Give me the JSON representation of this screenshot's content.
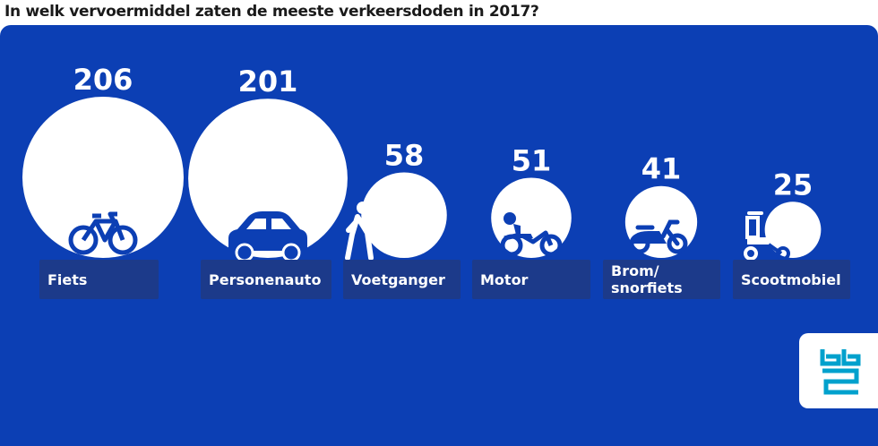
{
  "title": "In welk vervoermiddel zaten de meeste verkeersdoden in 2017?",
  "colors": {
    "background": "#0c3fb4",
    "bubble": "#ffffff",
    "label_bg": "#1c3a8a",
    "icon": "#0c3fb4",
    "logo": "#00a1cd"
  },
  "chart_data": {
    "type": "bubble",
    "title": "In welk vervoermiddel zaten de meeste verkeersdoden in 2017?",
    "categories": [
      "Fiets",
      "Personenauto",
      "Voetganger",
      "Motor",
      "Brom/\nsnorfiets",
      "Scootmobiel"
    ],
    "values": [
      206,
      201,
      58,
      51,
      41,
      25
    ],
    "icons": [
      "bicycle-icon",
      "car-icon",
      "pedestrian-icon",
      "motorcycle-icon",
      "moped-icon",
      "mobility-scooter-icon"
    ]
  },
  "logo": {
    "name": "cbs-logo"
  }
}
